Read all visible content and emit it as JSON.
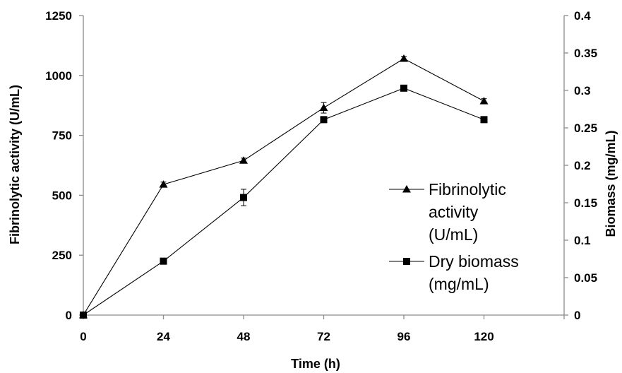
{
  "chart_data": {
    "type": "line",
    "x": [
      0,
      24,
      48,
      72,
      96,
      120
    ],
    "xlim": [
      0,
      144
    ],
    "xticks": [
      "0",
      "24",
      "48",
      "72",
      "96",
      "120"
    ],
    "xlabel": "Time (h)",
    "ylabel_left": "Fibrinolytic activity (U/mL)",
    "ylim_left": [
      0,
      1250
    ],
    "yticks_left": [
      "0",
      "250",
      "500",
      "750",
      "1000",
      "1250"
    ],
    "ylabel_right": "Biomass (mg/mL)",
    "ylim_right": [
      0,
      0.4
    ],
    "yticks_right": [
      "0",
      "0.05",
      "0.1",
      "0.15",
      "0.2",
      "0.25",
      "0.3",
      "0.35",
      "0.4"
    ],
    "grid": false,
    "legend_position": "right",
    "series": [
      {
        "name": "Fibrinolytic activity (U/mL)",
        "name_lines": [
          "Fibrinolytic",
          "activity",
          "(U/mL)"
        ],
        "axis": "left",
        "marker": "triangle",
        "values": [
          0,
          545,
          645,
          865,
          1070,
          893
        ],
        "errors": [
          0,
          10,
          10,
          22,
          10,
          10
        ]
      },
      {
        "name": "Dry biomass (mg/mL)",
        "name_lines": [
          "Dry biomass",
          "(mg/mL)"
        ],
        "axis": "right",
        "marker": "square",
        "values": [
          0,
          0.072,
          0.157,
          0.261,
          0.303,
          0.261
        ],
        "errors": [
          0,
          0.002,
          0.011,
          0.004,
          0.002,
          0.002
        ]
      }
    ]
  }
}
